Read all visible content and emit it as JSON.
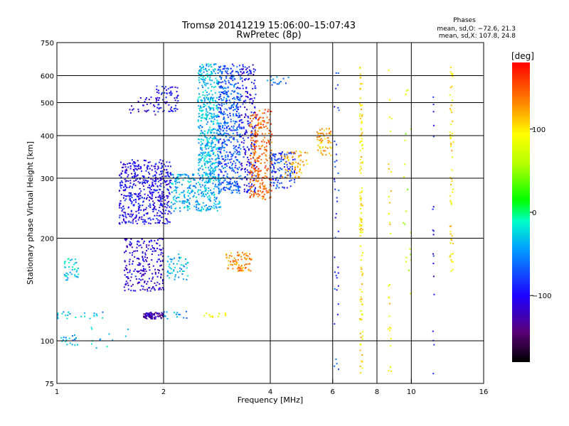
{
  "chart_data": {
    "type": "scatter",
    "title": "Tromsø 20141219 15:06:00–15:07:43",
    "subtitle": "RwPretec (8p)",
    "xlabel": "Frequency [MHz]",
    "ylabel": "Stationary phase Virtual Height [km]",
    "x_scale": "log",
    "y_scale": "log",
    "xlim": [
      1,
      16
    ],
    "ylim": [
      75,
      750
    ],
    "x_ticks": [
      "1",
      "2",
      "4",
      "6",
      "8",
      "10",
      "16"
    ],
    "y_ticks": [
      "75",
      "100",
      "200",
      "300",
      "400",
      "500",
      "600",
      "750"
    ],
    "grid": true,
    "stats": {
      "heading": "Phases",
      "line_o": "mean, sd,O: −72.6, 21.3",
      "line_x": "mean, sd,X: 107.8, 24.8"
    },
    "colorbar": {
      "label": "[deg]",
      "range": [
        -180,
        180
      ],
      "ticks": [
        "100",
        "0",
        "−100"
      ],
      "tick_values": [
        100,
        0,
        -100
      ]
    },
    "clusters": [
      {
        "x": [
          1.5,
          2.1
        ],
        "y": [
          220,
          340
        ],
        "phase": -100,
        "count": 520
      },
      {
        "x": [
          1.9,
          2.2
        ],
        "y": [
          470,
          560
        ],
        "phase": -95,
        "count": 70
      },
      {
        "x": [
          1.6,
          1.95
        ],
        "y": [
          460,
          520
        ],
        "phase": -110,
        "count": 30
      },
      {
        "x": [
          2.1,
          2.9
        ],
        "y": [
          240,
          310
        ],
        "phase": -40,
        "count": 300
      },
      {
        "x": [
          2.5,
          2.85
        ],
        "y": [
          310,
          650
        ],
        "phase": -35,
        "count": 420
      },
      {
        "x": [
          2.85,
          3.3
        ],
        "y": [
          270,
          650
        ],
        "phase": -70,
        "count": 520
      },
      {
        "x": [
          3.3,
          3.65
        ],
        "y": [
          270,
          650
        ],
        "phase": -100,
        "count": 220
      },
      {
        "x": [
          3.5,
          4.05
        ],
        "y": [
          260,
          480
        ],
        "phase": 145,
        "count": 260
      },
      {
        "x": [
          4.0,
          4.7
        ],
        "y": [
          280,
          360
        ],
        "phase": -80,
        "count": 120
      },
      {
        "x": [
          4.3,
          5.1
        ],
        "y": [
          300,
          360
        ],
        "phase": 120,
        "count": 60
      },
      {
        "x": [
          5.4,
          5.95
        ],
        "y": [
          350,
          420
        ],
        "phase": 120,
        "count": 60
      },
      {
        "x": [
          3.9,
          4.5
        ],
        "y": [
          560,
          600
        ],
        "phase": -60,
        "count": 15
      },
      {
        "x": [
          1.55,
          2.0
        ],
        "y": [
          140,
          200
        ],
        "phase": -110,
        "count": 230
      },
      {
        "x": [
          1.75,
          2.0
        ],
        "y": [
          116,
          121
        ],
        "phase": -125,
        "count": 80
      },
      {
        "x": [
          1.0,
          1.35
        ],
        "y": [
          116,
          122
        ],
        "phase": -40,
        "count": 25
      },
      {
        "x": [
          1.05,
          1.15
        ],
        "y": [
          150,
          175
        ],
        "phase": -30,
        "count": 40
      },
      {
        "x": [
          1.02,
          1.15
        ],
        "y": [
          97,
          104
        ],
        "phase": -40,
        "count": 20
      },
      {
        "x": [
          2.05,
          2.35
        ],
        "y": [
          150,
          180
        ],
        "phase": -40,
        "count": 50
      },
      {
        "x": [
          3.0,
          3.55
        ],
        "y": [
          160,
          182
        ],
        "phase": 130,
        "count": 80
      },
      {
        "x": [
          2.6,
          3.05
        ],
        "y": [
          117,
          121
        ],
        "phase": 90,
        "count": 12
      },
      {
        "x": [
          2.0,
          2.35
        ],
        "y": [
          116,
          122
        ],
        "phase": -50,
        "count": 15
      },
      {
        "x": [
          1.25,
          1.6
        ],
        "y": [
          95,
          110
        ],
        "phase": -30,
        "count": 12
      },
      {
        "x": [
          6.05,
          6.25
        ],
        "y": [
          80,
          640
        ],
        "phase": -80,
        "count": 40
      },
      {
        "x": [
          7.15,
          7.3
        ],
        "y": [
          80,
          650
        ],
        "phase": 100,
        "count": 120
      },
      {
        "x": [
          8.6,
          8.8
        ],
        "y": [
          80,
          650
        ],
        "phase": 100,
        "count": 30
      },
      {
        "x": [
          12.85,
          13.15
        ],
        "y": [
          160,
          640
        ],
        "phase": 100,
        "count": 60
      },
      {
        "x": [
          11.5,
          11.6
        ],
        "y": [
          80,
          620
        ],
        "phase": -100,
        "count": 20
      },
      {
        "x": [
          9.5,
          10.0
        ],
        "y": [
          130,
          600
        ],
        "phase": 60,
        "count": 20
      }
    ]
  }
}
